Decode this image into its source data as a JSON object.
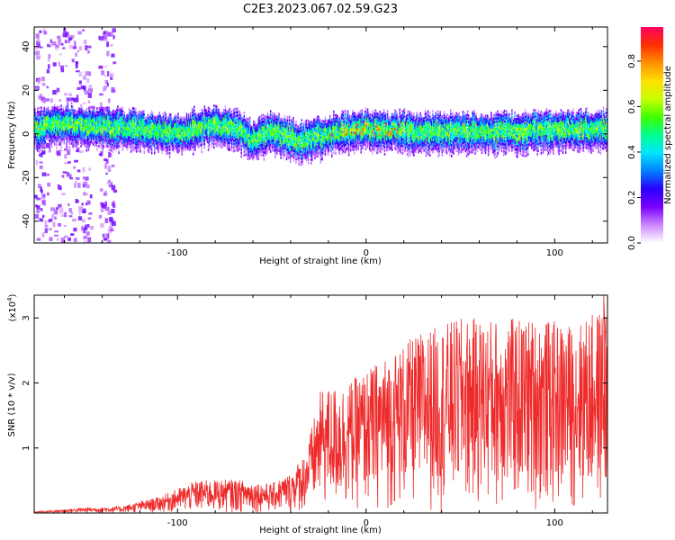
{
  "title": "C2E3.2023.067.02.59.G23",
  "colors": {
    "snr_line": "#ee2a2a",
    "axes": "#000000"
  },
  "chart_data": [
    {
      "type": "heatmap",
      "xlabel": "Height of straight line (km)",
      "ylabel": "Frequency (Hz)",
      "xlim": [
        -176,
        128
      ],
      "ylim": [
        -50,
        49
      ],
      "xticks": [
        -100,
        0,
        100
      ],
      "xtick_labels": [
        "-100",
        "0",
        "100"
      ],
      "yticks": [
        -40,
        -20,
        0,
        20,
        40
      ],
      "ytick_labels": [
        "-40",
        "-20",
        "0",
        "20",
        "40"
      ],
      "colorbar": {
        "label": "Normalized spectral amplitude",
        "range": [
          0,
          0.95
        ],
        "ticks": [
          0.0,
          0.2,
          0.4,
          0.6,
          0.8
        ],
        "tick_labels": [
          "0.0",
          "0.2",
          "0.4",
          "0.6",
          "0.8"
        ],
        "colormap": [
          "#ffffff",
          "#cc88ff",
          "#7a00ff",
          "#2a00ff",
          "#0080ff",
          "#00e5ff",
          "#00ff90",
          "#40ff00",
          "#c8ff00",
          "#ffe000",
          "#ff9000",
          "#ff3000",
          "#ff0060"
        ]
      },
      "ridge_center_hz": [
        {
          "x": -170,
          "y": 5
        },
        {
          "x": -150,
          "y": 4
        },
        {
          "x": -120,
          "y": 2
        },
        {
          "x": -100,
          "y": 0
        },
        {
          "x": -85,
          "y": 4
        },
        {
          "x": -70,
          "y": 3
        },
        {
          "x": -60,
          "y": -3
        },
        {
          "x": -50,
          "y": 1
        },
        {
          "x": -35,
          "y": -4
        },
        {
          "x": -20,
          "y": 0
        },
        {
          "x": -10,
          "y": 1
        },
        {
          "x": 0,
          "y": 2
        },
        {
          "x": 20,
          "y": 1
        },
        {
          "x": 40,
          "y": 1
        },
        {
          "x": 60,
          "y": 1
        },
        {
          "x": 80,
          "y": 1
        },
        {
          "x": 100,
          "y": 2
        },
        {
          "x": 128,
          "y": 2
        }
      ],
      "ridge_halfwidth_hz": 5
    },
    {
      "type": "line",
      "xlabel": "Height of straight line (km)",
      "ylabel": "SNR (10 * v/v)",
      "y_multiplier_label": "(x10",
      "y_multiplier_exp": "4",
      "y_multiplier_close": ")",
      "xlim": [
        -176,
        128
      ],
      "ylim": [
        0,
        3.35
      ],
      "xticks": [
        -100,
        0,
        100
      ],
      "xtick_labels": [
        "-100",
        "0",
        "100"
      ],
      "yticks": [
        1,
        2,
        3
      ],
      "ytick_labels": [
        "1",
        "2",
        "3"
      ],
      "series": [
        {
          "envelope": [
            {
              "x": -176,
              "y": 0.02
            },
            {
              "x": -150,
              "y": 0.08
            },
            {
              "x": -130,
              "y": 0.1
            },
            {
              "x": -110,
              "y": 0.25
            },
            {
              "x": -90,
              "y": 0.5
            },
            {
              "x": -70,
              "y": 0.52
            },
            {
              "x": -50,
              "y": 0.45
            },
            {
              "x": -40,
              "y": 0.62
            },
            {
              "x": -32,
              "y": 0.95
            },
            {
              "x": -24,
              "y": 1.9
            },
            {
              "x": -10,
              "y": 2.0
            },
            {
              "x": 10,
              "y": 2.4
            },
            {
              "x": 30,
              "y": 2.8
            },
            {
              "x": 50,
              "y": 3.0
            },
            {
              "x": 70,
              "y": 3.0
            },
            {
              "x": 90,
              "y": 3.0
            },
            {
              "x": 110,
              "y": 2.9
            },
            {
              "x": 128,
              "y": 3.2
            }
          ],
          "peak": {
            "x": 126,
            "y": 3.35
          }
        }
      ]
    }
  ]
}
